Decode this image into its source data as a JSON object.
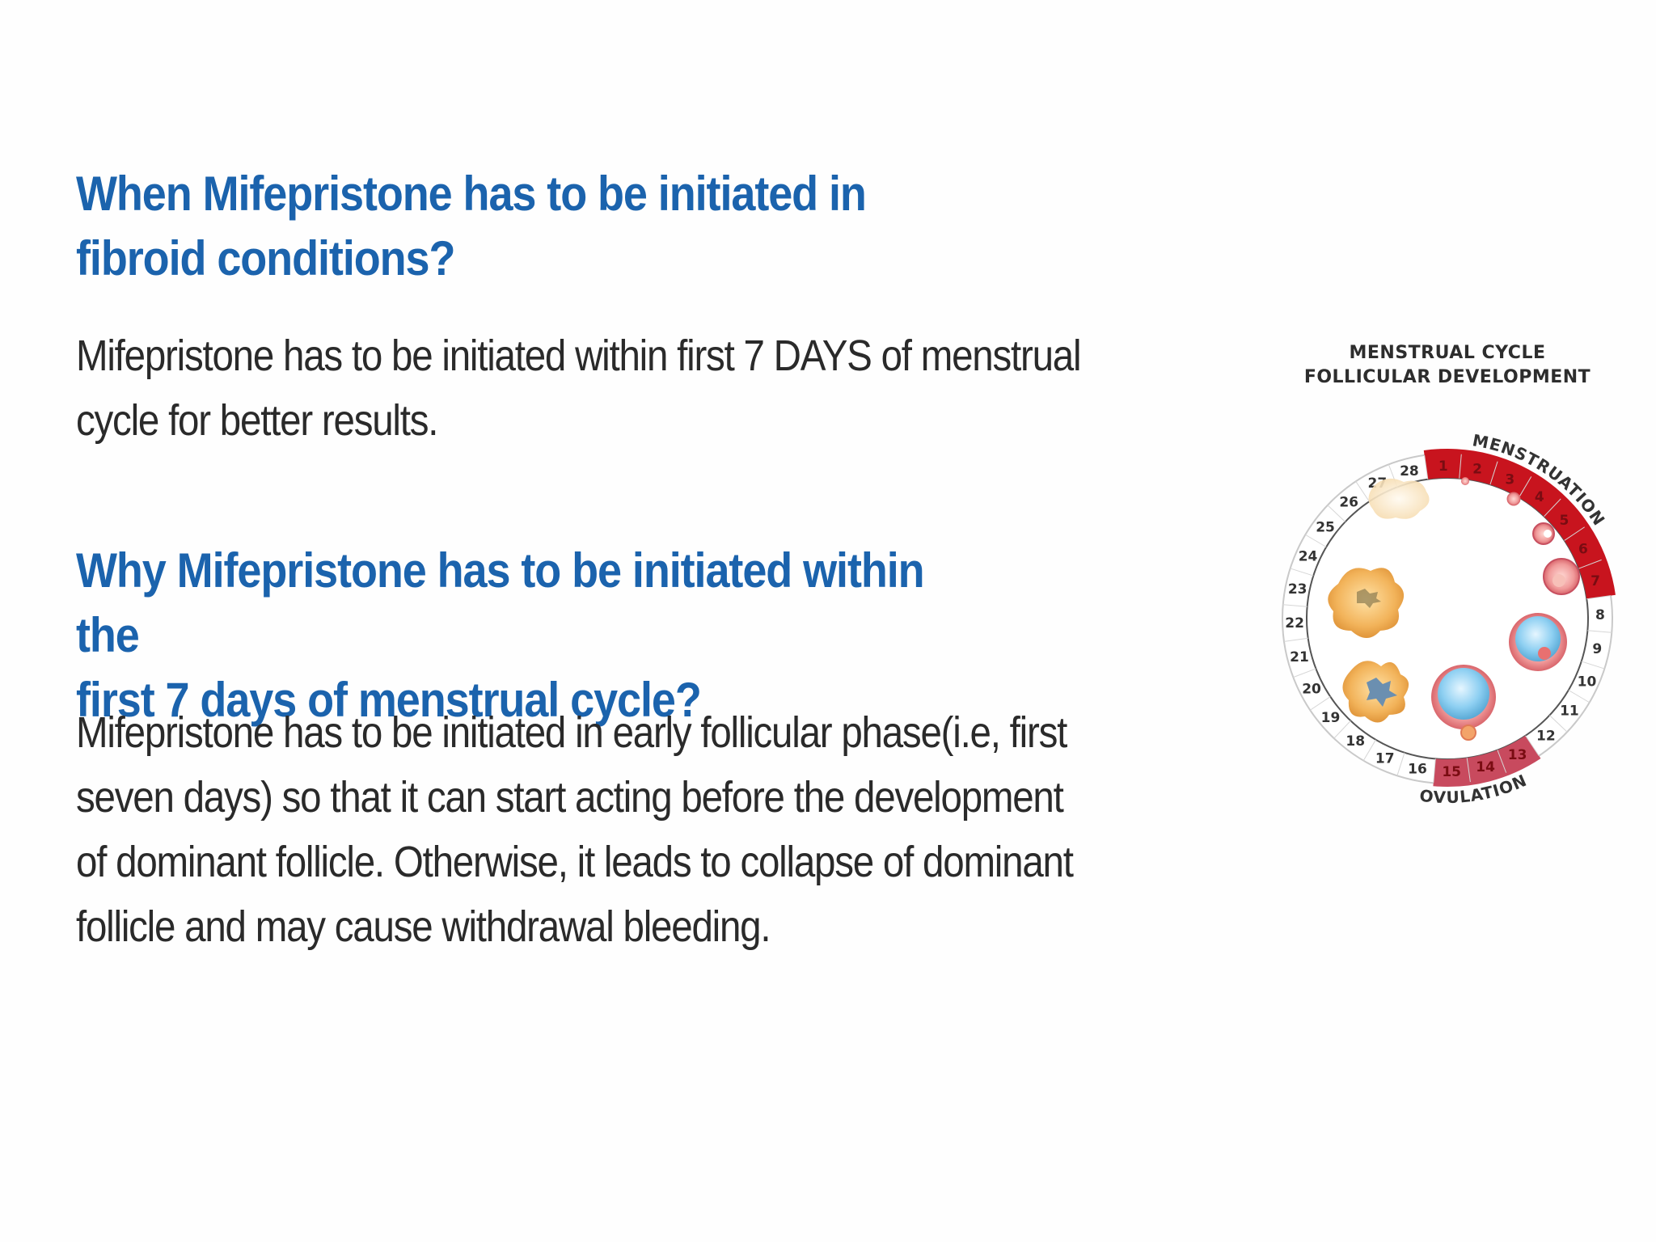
{
  "section1": {
    "heading": "When Mifepristone has to be initiated in\nfibroid conditions?",
    "body": "Mifepristone has to be initiated within first 7 DAYS of menstrual\ncycle for better results."
  },
  "section2": {
    "heading": "Why Mifepristone has to be initiated within the\nfirst 7 days of menstrual cycle?",
    "body": "Mifepristone has to be initiated in early follicular phase(i.e, first\nseven days)   so that it can start acting before the development\nof dominant follicle. Otherwise, it leads to collapse of dominant\nfollicle and may cause withdrawal bleeding."
  },
  "diagram": {
    "title_line1": "MENSTRUAL CYCLE",
    "title_line2": "FOLLICULAR DEVELOPMENT",
    "menstruation_label": "MENSTRUATION",
    "ovulation_label": "OVULATION",
    "days": [
      "1",
      "2",
      "3",
      "4",
      "5",
      "6",
      "7",
      "8",
      "9",
      "10",
      "11",
      "12",
      "13",
      "14",
      "15",
      "16",
      "17",
      "18",
      "19",
      "20",
      "21",
      "22",
      "23",
      "24",
      "25",
      "26",
      "27",
      "28"
    ],
    "menstruation_days": [
      1,
      7
    ],
    "ovulation_days": [
      13,
      15
    ],
    "colors": {
      "menstruation": "#c8141e",
      "ovulation": "#c84a5e",
      "ring_border": "#c9c9c9",
      "follicle_blue": "#7cc6ee",
      "corpus_luteum": "#f0b25a"
    }
  }
}
